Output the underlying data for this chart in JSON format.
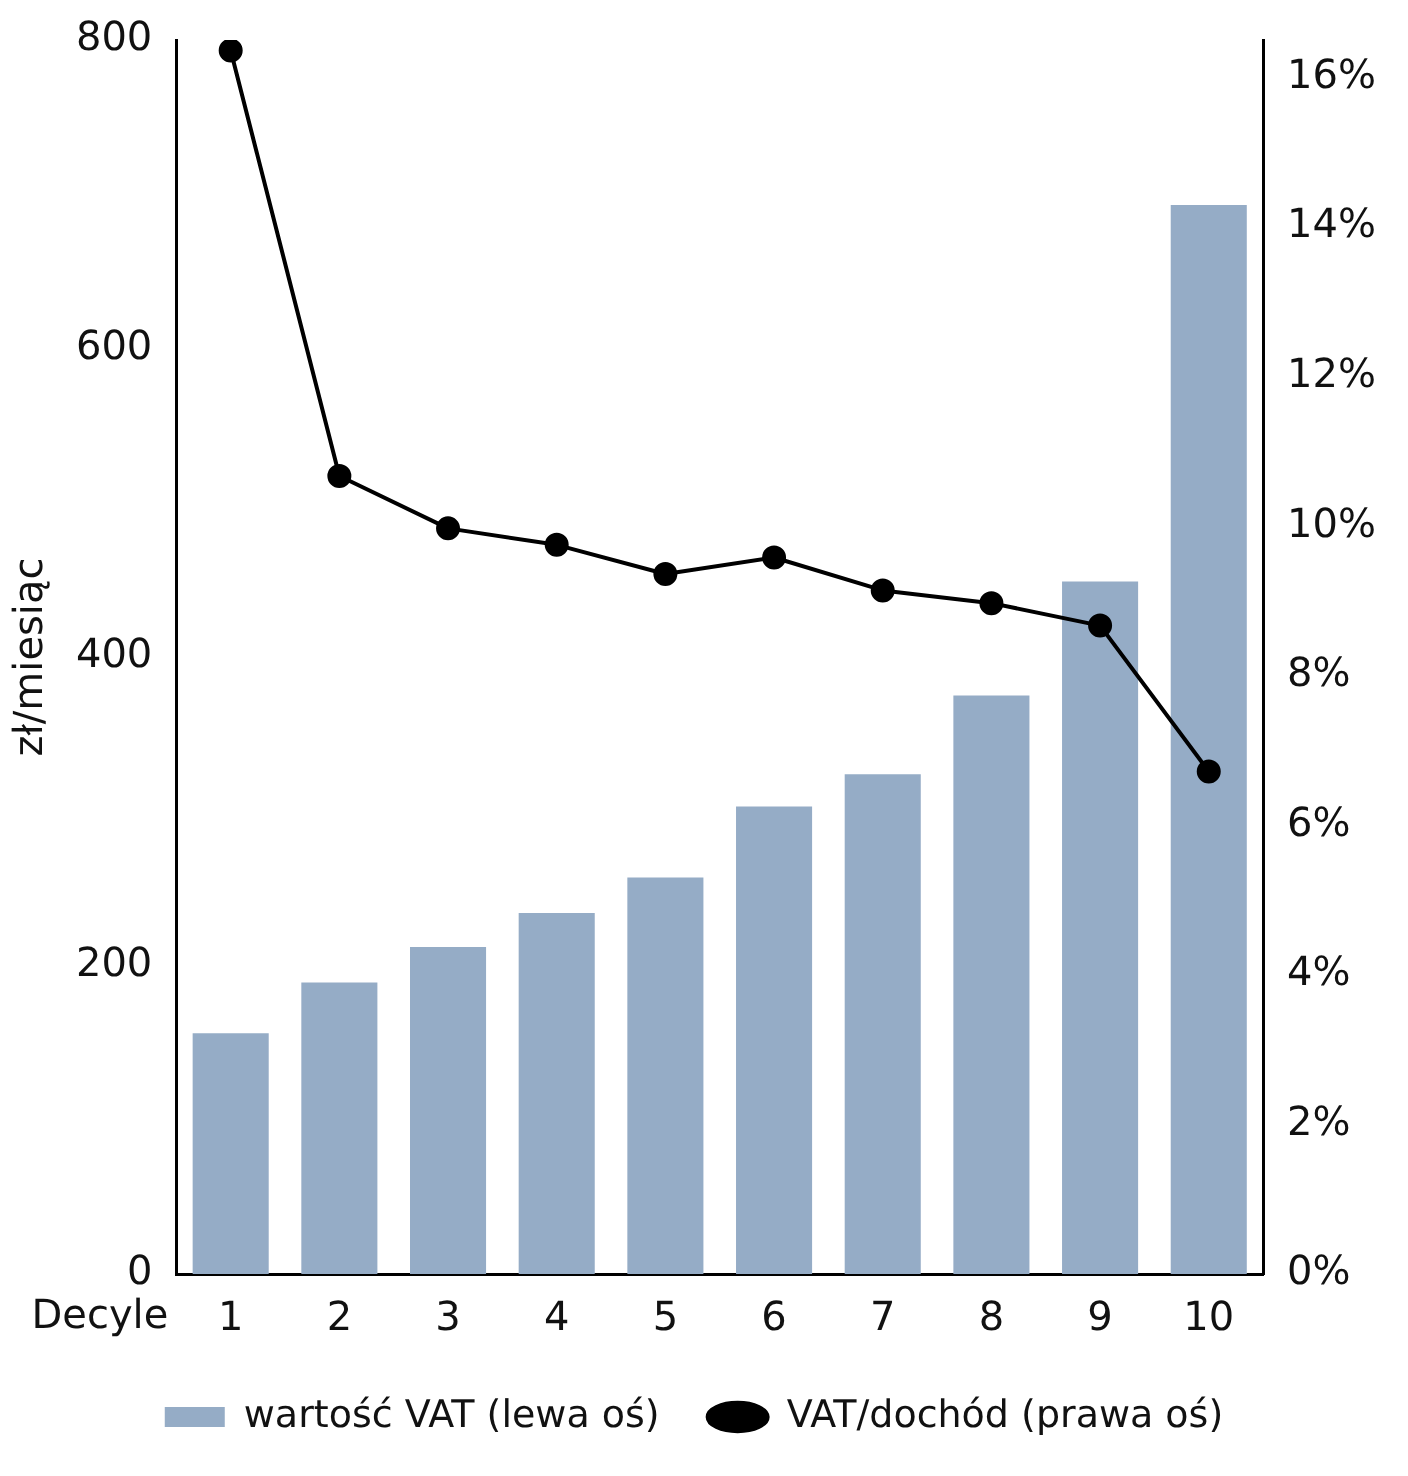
{
  "chart_data": {
    "type": "bar",
    "xlabel": "Decyle",
    "ylabel": "zł/miesiąc",
    "categories": [
      "1",
      "2",
      "3",
      "4",
      "5",
      "6",
      "7",
      "8",
      "9",
      "10"
    ],
    "series": [
      {
        "name": "wartość VAT (lewa oś)",
        "color": "#95acc6",
        "values": [
          156,
          189,
          212,
          234,
          257,
          303,
          324,
          375,
          449,
          693
        ]
      },
      {
        "name": "VAT/dochód (prawa oś)",
        "type": "line",
        "axis": "y2",
        "color": "#000000",
        "values": [
          16.36,
          10.67,
          9.97,
          9.75,
          9.36,
          9.58,
          9.14,
          8.97,
          8.67,
          6.72
        ]
      }
    ],
    "ylim": [
      0,
      800
    ],
    "yticks": [
      0,
      200,
      400,
      600,
      800
    ],
    "y2lim": [
      0,
      16.5
    ],
    "y2ticks": [
      {
        "value": 0,
        "label": "0%"
      },
      {
        "value": 2,
        "label": "2%"
      },
      {
        "value": 4,
        "label": "4%"
      },
      {
        "value": 6,
        "label": "6%"
      },
      {
        "value": 8,
        "label": "8%"
      },
      {
        "value": 10,
        "label": "10%"
      },
      {
        "value": 12,
        "label": "12%"
      },
      {
        "value": 14,
        "label": "14%"
      },
      {
        "value": 16,
        "label": "16%"
      }
    ],
    "grid": false,
    "legend": "bottom",
    "marker": "circle",
    "line_style": "solid"
  }
}
